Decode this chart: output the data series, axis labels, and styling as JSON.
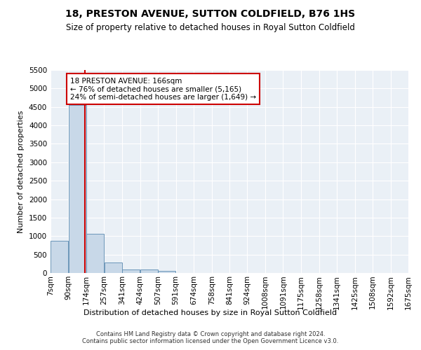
{
  "title": "18, PRESTON AVENUE, SUTTON COLDFIELD, B76 1HS",
  "subtitle": "Size of property relative to detached houses in Royal Sutton Coldfield",
  "xlabel": "Distribution of detached houses by size in Royal Sutton Coldfield",
  "ylabel": "Number of detached properties",
  "footer_line1": "Contains HM Land Registry data © Crown copyright and database right 2024.",
  "footer_line2": "Contains public sector information licensed under the Open Government Licence v3.0.",
  "annotation_line1": "18 PRESTON AVENUE: 166sqm",
  "annotation_line2": "← 76% of detached houses are smaller (5,165)",
  "annotation_line3": "24% of semi-detached houses are larger (1,649) →",
  "property_size": 166,
  "bar_color": "#c8d8e8",
  "bar_edge_color": "#5a8ab0",
  "red_line_color": "#cc0000",
  "annotation_box_color": "#cc0000",
  "background_color": "#eaf0f6",
  "ylim": [
    0,
    5500
  ],
  "yticks": [
    0,
    500,
    1000,
    1500,
    2000,
    2500,
    3000,
    3500,
    4000,
    4500,
    5000,
    5500
  ],
  "bin_labels": [
    "7sqm",
    "90sqm",
    "174sqm",
    "257sqm",
    "341sqm",
    "424sqm",
    "507sqm",
    "591sqm",
    "674sqm",
    "758sqm",
    "841sqm",
    "924sqm",
    "1008sqm",
    "1091sqm",
    "1175sqm",
    "1258sqm",
    "1341sqm",
    "1425sqm",
    "1508sqm",
    "1592sqm",
    "1675sqm"
  ],
  "bar_values": [
    880,
    4550,
    1060,
    280,
    90,
    90,
    55,
    0,
    0,
    0,
    0,
    0,
    0,
    0,
    0,
    0,
    0,
    0,
    0,
    0
  ],
  "bin_edges": [
    7,
    90,
    174,
    257,
    341,
    424,
    507,
    591,
    674,
    758,
    841,
    924,
    1008,
    1091,
    1175,
    1258,
    1341,
    1425,
    1508,
    1592,
    1675
  ]
}
